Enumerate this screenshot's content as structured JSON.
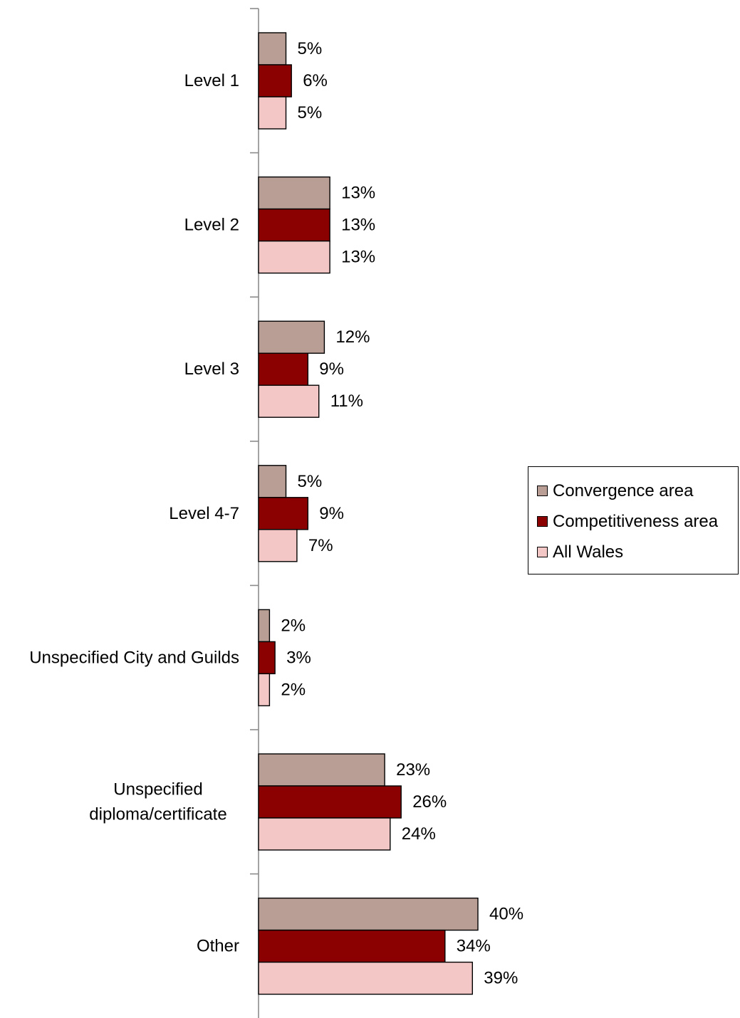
{
  "chart_data": {
    "type": "bar",
    "orientation": "horizontal",
    "categories": [
      "Level 1",
      "Level 2",
      "Level 3",
      "Level 4-7",
      "Unspecified City and Guilds",
      "Unspecified diploma/certificate",
      "Other"
    ],
    "series": [
      {
        "name": "Convergence area",
        "color": "#b89e94",
        "values": [
          5,
          13,
          12,
          5,
          2,
          23,
          40
        ],
        "labels": [
          "5%",
          "13%",
          "12%",
          "5%",
          "2%",
          "23%",
          "40%"
        ]
      },
      {
        "name": "Competitiveness area",
        "color": "#8b0000",
        "values": [
          6,
          13,
          9,
          9,
          3,
          26,
          34
        ],
        "labels": [
          "6%",
          "13%",
          "9%",
          "9%",
          "3%",
          "26%",
          "34%"
        ]
      },
      {
        "name": "All Wales",
        "color": "#f4c7c7",
        "values": [
          5,
          13,
          11,
          7,
          2,
          24,
          39
        ],
        "labels": [
          "5%",
          "13%",
          "11%",
          "7%",
          "2%",
          "24%",
          "39%"
        ]
      }
    ],
    "value_unit": "%",
    "xlim": [
      0,
      40
    ],
    "grid": false,
    "legend_position": "right"
  }
}
